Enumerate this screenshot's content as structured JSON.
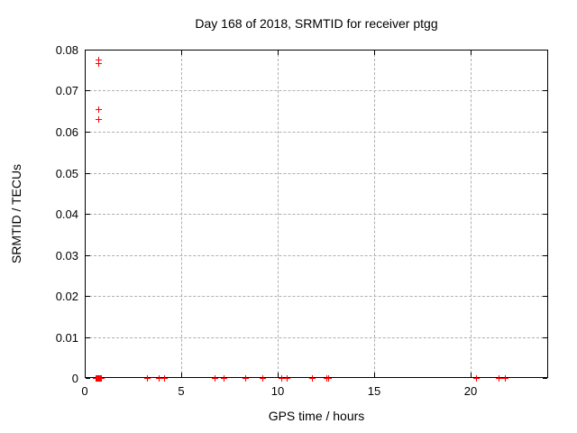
{
  "figure": {
    "background": "#ffffff"
  },
  "chart_data": {
    "type": "scatter",
    "title": "Day 168 of 2018, SRMTID for receiver ptgg",
    "xlabel": "GPS time / hours",
    "ylabel": "SRMTID / TECUs",
    "xlim": [
      0,
      24
    ],
    "ylim": [
      0,
      0.08
    ],
    "grid": true,
    "legend": "none",
    "marker": "plus",
    "colors": {
      "marker": "#ff0000",
      "grid": "#b0b0b0",
      "axis": "#000000",
      "text": "#000000"
    },
    "xticks": [
      {
        "v": 0,
        "label": "0"
      },
      {
        "v": 5,
        "label": "5"
      },
      {
        "v": 10,
        "label": "10"
      },
      {
        "v": 15,
        "label": "15"
      },
      {
        "v": 20,
        "label": "20"
      }
    ],
    "yticks": [
      {
        "v": 0.0,
        "label": "0"
      },
      {
        "v": 0.01,
        "label": "0.01"
      },
      {
        "v": 0.02,
        "label": "0.02"
      },
      {
        "v": 0.03,
        "label": "0.03"
      },
      {
        "v": 0.04,
        "label": "0.04"
      },
      {
        "v": 0.05,
        "label": "0.05"
      },
      {
        "v": 0.06,
        "label": "0.06"
      },
      {
        "v": 0.07,
        "label": "0.07"
      },
      {
        "v": 0.08,
        "label": "0.08"
      }
    ],
    "series": [
      {
        "name": "SRMTID",
        "points": [
          [
            0.72,
            0.0776
          ],
          [
            0.72,
            0.0766
          ],
          [
            0.72,
            0.0656
          ],
          [
            0.72,
            0.063
          ],
          [
            0.56,
            0
          ],
          [
            0.6,
            0
          ],
          [
            0.64,
            0
          ],
          [
            0.68,
            0
          ],
          [
            0.72,
            0
          ],
          [
            0.76,
            0
          ],
          [
            0.8,
            0
          ],
          [
            0.84,
            0
          ],
          [
            3.22,
            0
          ],
          [
            3.85,
            0
          ],
          [
            4.13,
            0
          ],
          [
            6.71,
            0
          ],
          [
            7.18,
            0
          ],
          [
            8.31,
            0
          ],
          [
            9.19,
            0
          ],
          [
            10.2,
            0
          ],
          [
            10.47,
            0
          ],
          [
            11.75,
            0
          ],
          [
            12.52,
            0
          ],
          [
            12.62,
            0
          ],
          [
            20.25,
            0
          ],
          [
            21.41,
            0
          ],
          [
            21.78,
            0
          ]
        ]
      }
    ]
  }
}
